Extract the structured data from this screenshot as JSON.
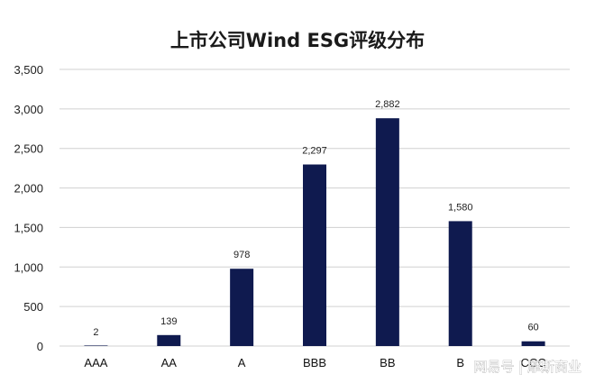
{
  "chart_data": {
    "type": "bar",
    "title": "上市公司Wind ESG评级分布",
    "categories": [
      "AAA",
      "AA",
      "A",
      "BBB",
      "BB",
      "B",
      "CCC"
    ],
    "values": [
      2,
      139,
      978,
      2297,
      2882,
      1580,
      60
    ],
    "data_labels": [
      "2",
      "139",
      "978",
      "2,297",
      "2,882",
      "1,580",
      "60"
    ],
    "y_ticks": [
      0,
      500,
      1000,
      1500,
      2000,
      2500,
      3000,
      3500
    ],
    "y_tick_labels": [
      "0",
      "500",
      "1,000",
      "1,500",
      "2,000",
      "2,500",
      "3,000",
      "3,500"
    ],
    "ylim": [
      0,
      3500
    ],
    "xlabel": "",
    "ylabel": "",
    "grid": true,
    "legend": "none",
    "bar_color": "#0f1a4f",
    "grid_color": "#d0d0d0"
  },
  "watermark": "网易号 | 摩斯商业"
}
